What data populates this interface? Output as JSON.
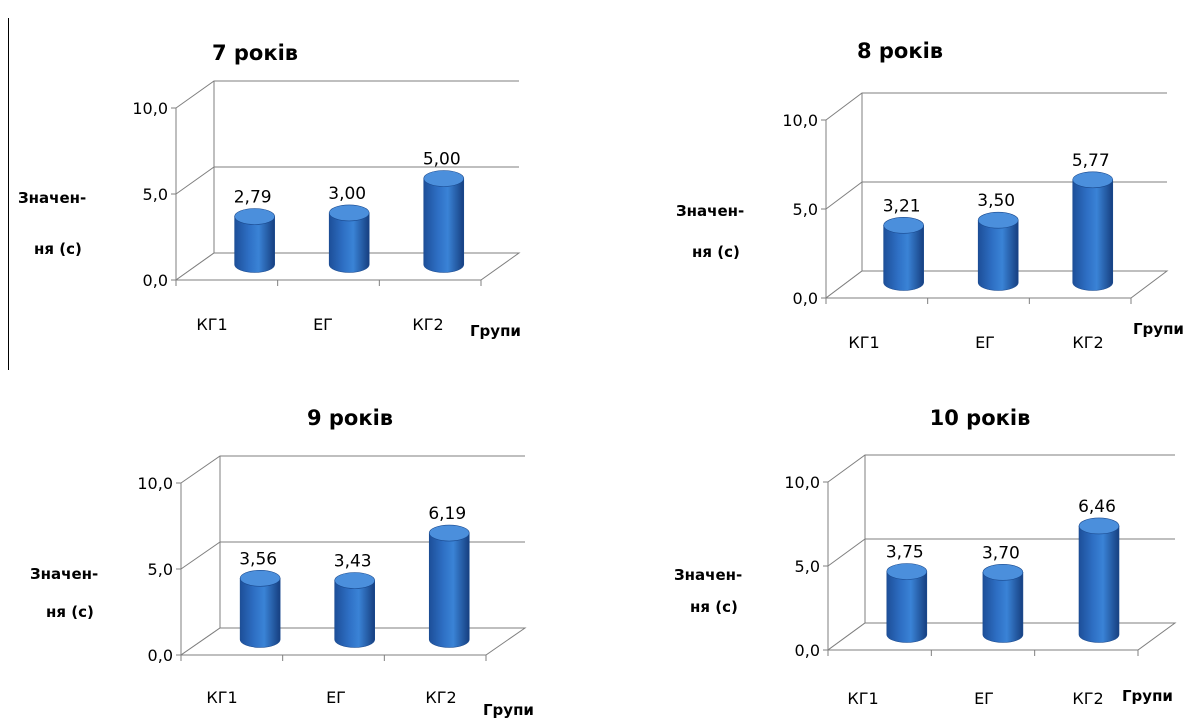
{
  "chart_data": [
    {
      "type": "bar",
      "title": "7 років",
      "ylabel_line1": "Значен-",
      "ylabel_line2": "ня (с)",
      "xlabel": "Групи",
      "categories": [
        "КГ1",
        "ЕГ",
        "КГ2"
      ],
      "values": [
        2.79,
        3.0,
        5.0
      ],
      "value_labels": [
        "2,79",
        "3,00",
        "5,00"
      ],
      "yticks": [
        "0,0",
        "5,0",
        "10,0"
      ],
      "ylim": [
        0,
        10
      ],
      "color": "#2e6fc4"
    },
    {
      "type": "bar",
      "title": "8 років",
      "ylabel_line1": "Значен-",
      "ylabel_line2": "ня (с)",
      "xlabel": "Групи",
      "categories": [
        "КГ1",
        "ЕГ",
        "КГ2"
      ],
      "values": [
        3.21,
        3.5,
        5.77
      ],
      "value_labels": [
        "3,21",
        "3,50",
        "5,77"
      ],
      "yticks": [
        "0,0",
        "5,0",
        "10,0"
      ],
      "ylim": [
        0,
        10
      ],
      "color": "#2e6fc4"
    },
    {
      "type": "bar",
      "title": "9 років",
      "ylabel_line1": "Значен-",
      "ylabel_line2": "ня (с)",
      "xlabel": "Групи",
      "categories": [
        "КГ1",
        "ЕГ",
        "КГ2"
      ],
      "values": [
        3.56,
        3.43,
        6.19
      ],
      "value_labels": [
        "3,56",
        "3,43",
        "6,19"
      ],
      "yticks": [
        "0,0",
        "5,0",
        "10,0"
      ],
      "ylim": [
        0,
        10
      ],
      "color": "#2e6fc4"
    },
    {
      "type": "bar",
      "title": "10 років",
      "ylabel_line1": "Значен-",
      "ylabel_line2": "ня (с)",
      "xlabel": "Групи",
      "categories": [
        "КГ1",
        "ЕГ",
        "КГ2"
      ],
      "values": [
        3.75,
        3.7,
        6.46
      ],
      "value_labels": [
        "3,75",
        "3,70",
        "6,46"
      ],
      "yticks": [
        "0,0",
        "5,0",
        "10,0"
      ],
      "ylim": [
        0,
        10
      ],
      "color": "#2e6fc4"
    }
  ]
}
